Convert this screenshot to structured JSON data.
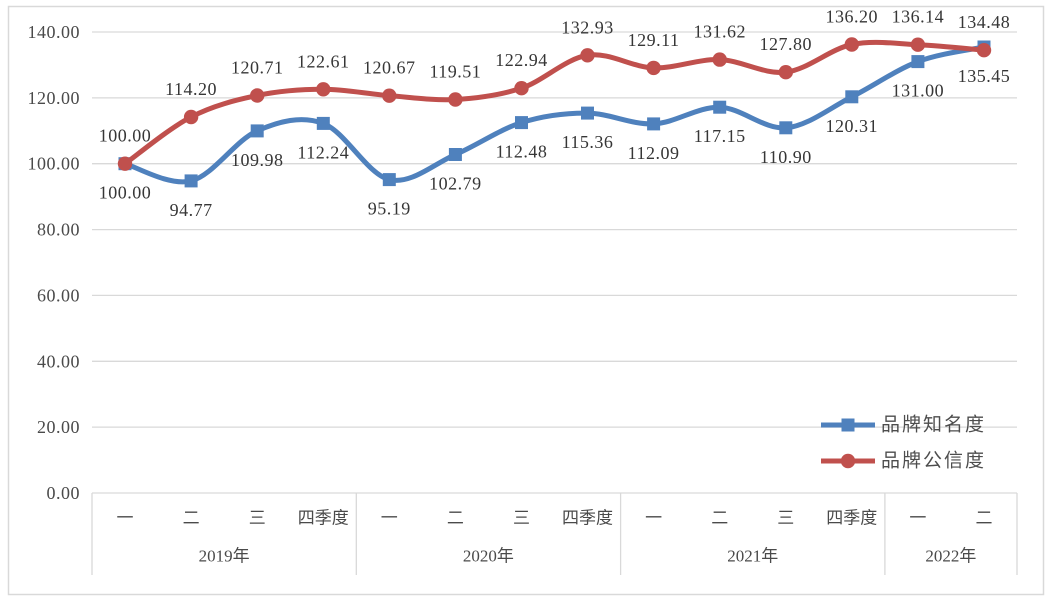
{
  "chart_data": {
    "type": "line",
    "title": "",
    "smooth": true,
    "grid": true,
    "x_axis": {
      "quarter_labels": [
        "一",
        "二",
        "三",
        "四季度",
        "一",
        "二",
        "三",
        "四季度",
        "一",
        "二",
        "三",
        "四季度",
        "一",
        "二"
      ],
      "year_groups": [
        {
          "label": "2019年",
          "span": 4
        },
        {
          "label": "2020年",
          "span": 4
        },
        {
          "label": "2021年",
          "span": 4
        },
        {
          "label": "2022年",
          "span": 2
        }
      ]
    },
    "y_axis": {
      "min": 0,
      "max": 140,
      "step": 20,
      "tick_labels": [
        "0.00",
        "20.00",
        "40.00",
        "60.00",
        "80.00",
        "100.00",
        "120.00",
        "140.00"
      ]
    },
    "series": [
      {
        "key": "brand-awareness",
        "name": "品牌知名度",
        "color": "#4F81BD",
        "marker": "square",
        "label_position": "below",
        "values": [
          100.0,
          94.77,
          109.98,
          112.24,
          95.19,
          102.79,
          112.48,
          115.36,
          112.09,
          117.15,
          110.9,
          120.31,
          131.0,
          135.45
        ],
        "labels": [
          "100.00",
          "94.77",
          "109.98",
          "112.24",
          "95.19",
          "102.79",
          "112.48",
          "115.36",
          "112.09",
          "117.15",
          "110.90",
          "120.31",
          "131.00",
          "135.45"
        ]
      },
      {
        "key": "brand-credibility",
        "name": "品牌公信度",
        "color": "#C0504D",
        "marker": "circle",
        "label_position": "above",
        "values": [
          100.0,
          114.2,
          120.71,
          122.61,
          120.67,
          119.51,
          122.94,
          132.93,
          129.11,
          131.62,
          127.8,
          136.2,
          136.14,
          134.48
        ],
        "labels": [
          "100.00",
          "114.20",
          "120.71",
          "122.61",
          "120.67",
          "119.51",
          "122.94",
          "132.93",
          "129.11",
          "131.62",
          "127.80",
          "136.20",
          "136.14",
          "134.48"
        ]
      }
    ],
    "legend": {
      "position": "right-middle",
      "entries": [
        "品牌知名度",
        "品牌公信度"
      ]
    },
    "colors": {
      "grid": "#d9d9d9",
      "border": "#d9d9d9",
      "axis_text": "#4a4a4a",
      "label_text": "#363636",
      "legend_text": "#4d4d4d"
    }
  }
}
